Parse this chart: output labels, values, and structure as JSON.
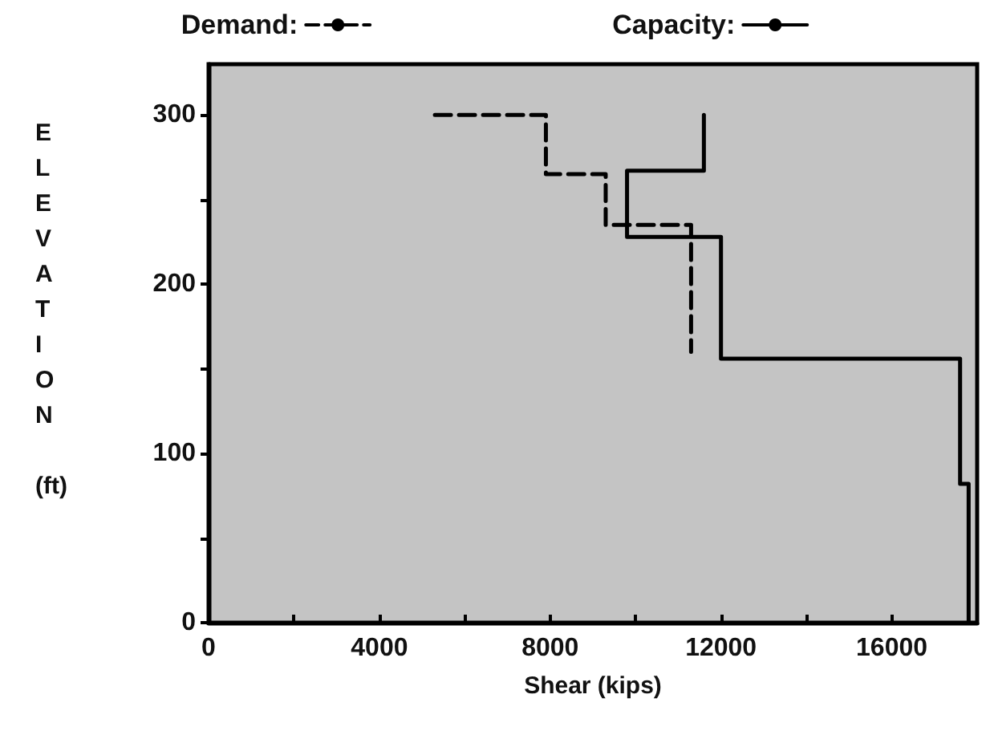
{
  "chart_data": {
    "type": "line",
    "xlabel": "Shear (kips)",
    "ylabel": "ELEVATION (ft)",
    "series": [
      {
        "name": "Demand:",
        "color": "#000000",
        "line_style": "dashed",
        "x": [
          5300,
          7900,
          7900,
          9300,
          9300,
          11300,
          11300
        ],
        "values": [
          300,
          300,
          265,
          265,
          235,
          235,
          160
        ]
      },
      {
        "name": "Capacity:",
        "color": "#000000",
        "line_style": "solid",
        "x": [
          11600,
          11600,
          9800,
          9800,
          12000,
          12000,
          17600,
          17600,
          17800,
          17800
        ],
        "values": [
          300,
          267,
          267,
          228,
          228,
          156,
          156,
          82,
          82,
          0
        ]
      }
    ],
    "xlim": [
      0,
      18000
    ],
    "xticks": [
      0,
      {
        "value": 2000,
        "label": null
      },
      4000,
      {
        "value": 6000,
        "label": null
      },
      8000,
      {
        "value": 10000,
        "label": null
      },
      12000,
      {
        "value": 14000,
        "label": null
      },
      16000
    ],
    "ylim": [
      0,
      330
    ],
    "yticks": [
      0,
      {
        "value": 50,
        "label": null
      },
      100,
      {
        "value": 150,
        "label": null
      },
      200,
      {
        "value": 250,
        "label": null
      },
      300
    ],
    "grid": false,
    "legend": "top",
    "marker": "none"
  }
}
